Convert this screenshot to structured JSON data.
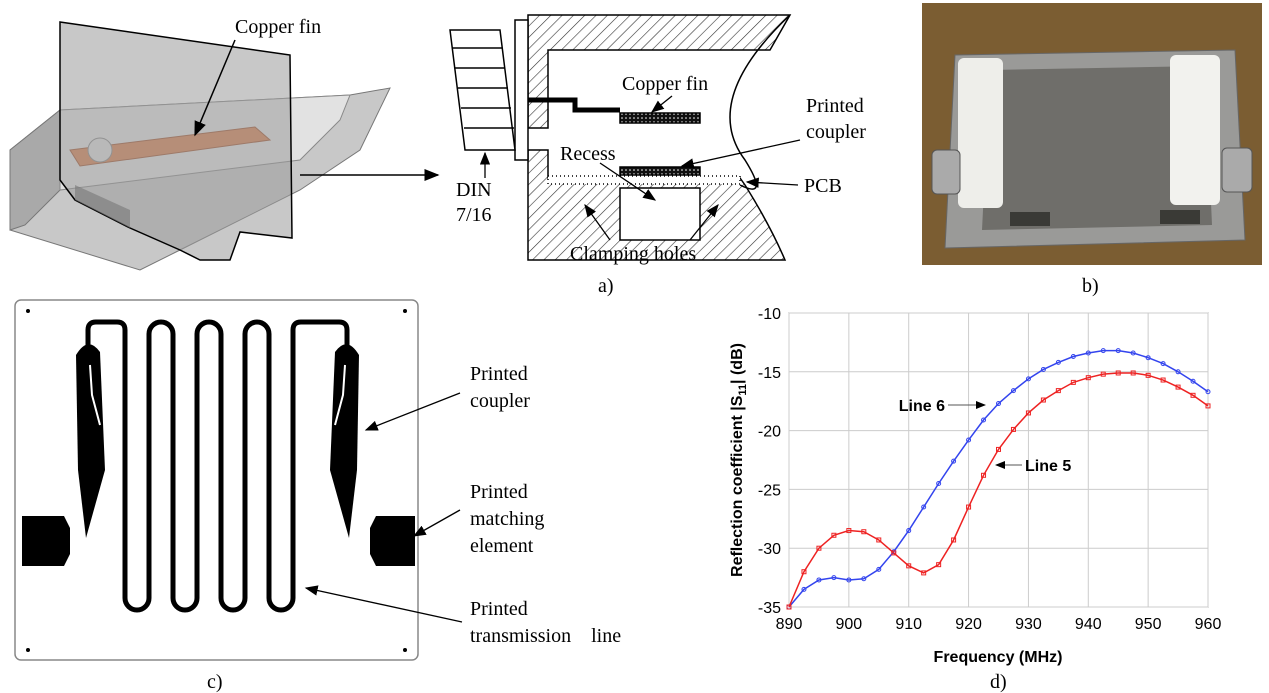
{
  "panel_a": {
    "fin_label_3d": "Copper fin",
    "fin_label": "Copper fin",
    "coupler_label": [
      "Printed",
      "coupler"
    ],
    "recess_label": "Recess",
    "pcb_label": "PCB",
    "din_label": [
      "DIN",
      "7/16"
    ],
    "holes_label": "Clamping holes",
    "caption": "a)"
  },
  "panel_b": {
    "caption": "b)"
  },
  "panel_c": {
    "coupler_label": [
      "Printed",
      "coupler"
    ],
    "matching_label": [
      "Printed",
      "matching",
      "element"
    ],
    "line_label": [
      "Printed",
      "transmission    line"
    ],
    "caption": "c)"
  },
  "panel_d": {
    "caption": "d)"
  },
  "chart_data": {
    "type": "line",
    "x_label": "Frequency (MHz)",
    "y_label": [
      "Reflection coefficient |S",
      "11",
      "| (dB)"
    ],
    "x": [
      890,
      892.5,
      895,
      897.5,
      900,
      902.5,
      905,
      907.5,
      910,
      912.5,
      915,
      917.5,
      920,
      922.5,
      925,
      927.5,
      930,
      932.5,
      935,
      937.5,
      940,
      942.5,
      945,
      947.5,
      950,
      952.5,
      955,
      957.5,
      960
    ],
    "series": [
      {
        "name": "Line 6",
        "color": "#3344ee",
        "values": [
          -35,
          -33.5,
          -32.7,
          -32.5,
          -32.7,
          -32.6,
          -31.8,
          -30.3,
          -28.5,
          -26.5,
          -24.5,
          -22.6,
          -20.8,
          -19.1,
          -17.7,
          -16.6,
          -15.6,
          -14.8,
          -14.2,
          -13.7,
          -13.4,
          -13.2,
          -13.2,
          -13.4,
          -13.8,
          -14.3,
          -15.0,
          -15.8,
          -16.7
        ]
      },
      {
        "name": "Line 5",
        "color": "#ee2222",
        "values": [
          -35,
          -32,
          -30.0,
          -28.9,
          -28.5,
          -28.6,
          -29.3,
          -30.4,
          -31.5,
          -32.1,
          -31.4,
          -29.3,
          -26.5,
          -23.8,
          -21.6,
          -19.9,
          -18.5,
          -17.4,
          -16.6,
          -15.9,
          -15.5,
          -15.2,
          -15.1,
          -15.1,
          -15.3,
          -15.7,
          -16.3,
          -17.0,
          -17.9
        ]
      }
    ],
    "xlim": [
      890,
      960
    ],
    "xticks": [
      890,
      900,
      910,
      920,
      930,
      940,
      950,
      960
    ],
    "ylim": [
      -35,
      -10
    ],
    "yticks": [
      -35,
      -30,
      -25,
      -20,
      -15,
      -10
    ],
    "grid": true
  }
}
